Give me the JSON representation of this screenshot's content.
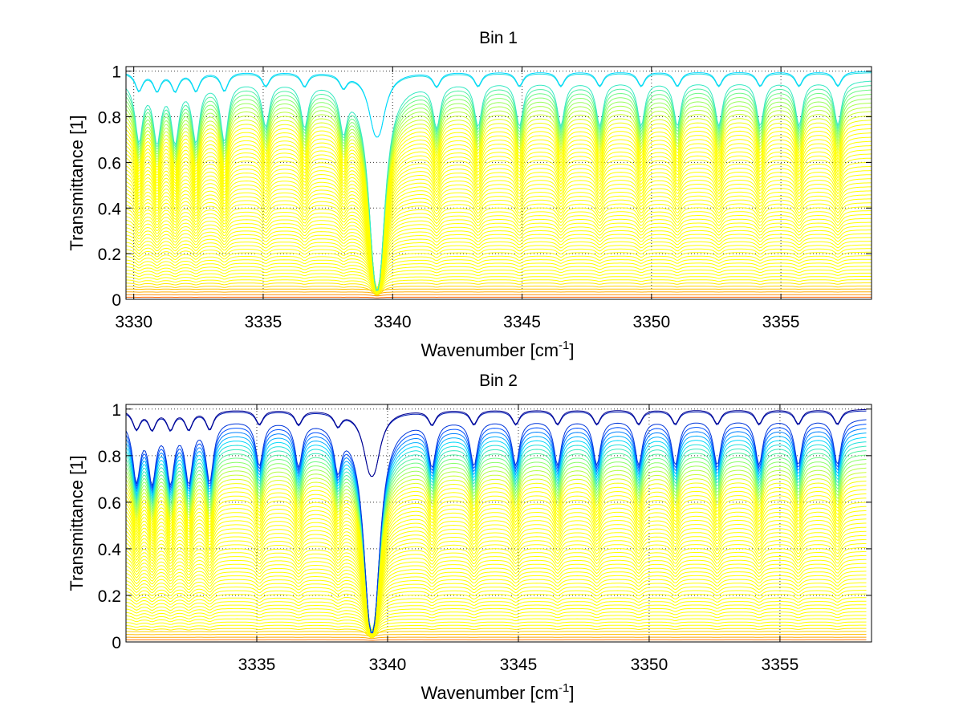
{
  "chart_data": [
    {
      "type": "line",
      "title": "Bin 1",
      "xlabel": "Wavenumber [cm",
      "xlabel_sup": "-1",
      "xlabel_end": "]",
      "ylabel": "Transmittance [1]",
      "xlim": [
        3329.7,
        3358.5
      ],
      "ylim": [
        0,
        1.02
      ],
      "xticks": [
        3330,
        3335,
        3340,
        3345,
        3350,
        3355
      ],
      "xtick_labels": [
        "3330",
        "3335",
        "3340",
        "3345",
        "3350",
        "3355"
      ],
      "yticks": [
        0,
        0.2,
        0.4,
        0.6,
        0.8,
        1
      ],
      "ytick_labels": [
        "0",
        "0.2",
        "0.4",
        "0.6",
        "0.8",
        "1"
      ],
      "grid": true,
      "colormap": "jet",
      "series_count": 60,
      "baseline_range": [
        0.0,
        1.0
      ],
      "strong_line_center": 3339.4,
      "weak_line_centers": [
        3330.2,
        3330.9,
        3331.6,
        3332.4,
        3333.5,
        3335.1,
        3336.6,
        3338.1,
        3341.7,
        3343.3,
        3344.9,
        3346.5,
        3348.0,
        3349.6,
        3351.0,
        3352.6,
        3354.2,
        3355.7,
        3357.2
      ],
      "colors": {
        "dark_blue": "#00008f",
        "blue": "#0050ff",
        "cyan": "#00d8ff",
        "green": "#80ff70",
        "yellow": "#ffff00",
        "orange": "#ff9f00",
        "red": "#ff3000"
      }
    },
    {
      "type": "line",
      "title": "Bin 2",
      "xlabel": "Wavenumber [cm",
      "xlabel_sup": "-1",
      "xlabel_end": "]",
      "ylabel": "Transmittance [1]",
      "xlim": [
        3330.0,
        3358.5
      ],
      "ylim": [
        0,
        1.02
      ],
      "xticks": [
        3335,
        3340,
        3345,
        3350,
        3355
      ],
      "xtick_labels": [
        "3335",
        "3340",
        "3345",
        "3350",
        "3355"
      ],
      "yticks": [
        0,
        0.2,
        0.4,
        0.6,
        0.8,
        1
      ],
      "ytick_labels": [
        "0",
        "0.2",
        "0.4",
        "0.6",
        "0.8",
        "1"
      ],
      "grid": true,
      "colormap": "jet",
      "series_count": 60,
      "baseline_range": [
        0.0,
        1.0
      ],
      "strong_line_center": 3339.4,
      "weak_line_centers": [
        3330.4,
        3331.0,
        3331.7,
        3332.4,
        3333.2,
        3335.1,
        3336.6,
        3338.1,
        3341.7,
        3343.3,
        3344.9,
        3346.5,
        3348.0,
        3349.6,
        3351.0,
        3352.6,
        3354.2,
        3355.7,
        3357.2
      ],
      "colors": {
        "dark_blue": "#00008f",
        "blue": "#0050ff",
        "cyan": "#00d8ff",
        "green": "#80ff70",
        "yellow": "#ffff00",
        "orange": "#ff9f00",
        "red": "#ff3000"
      }
    }
  ]
}
